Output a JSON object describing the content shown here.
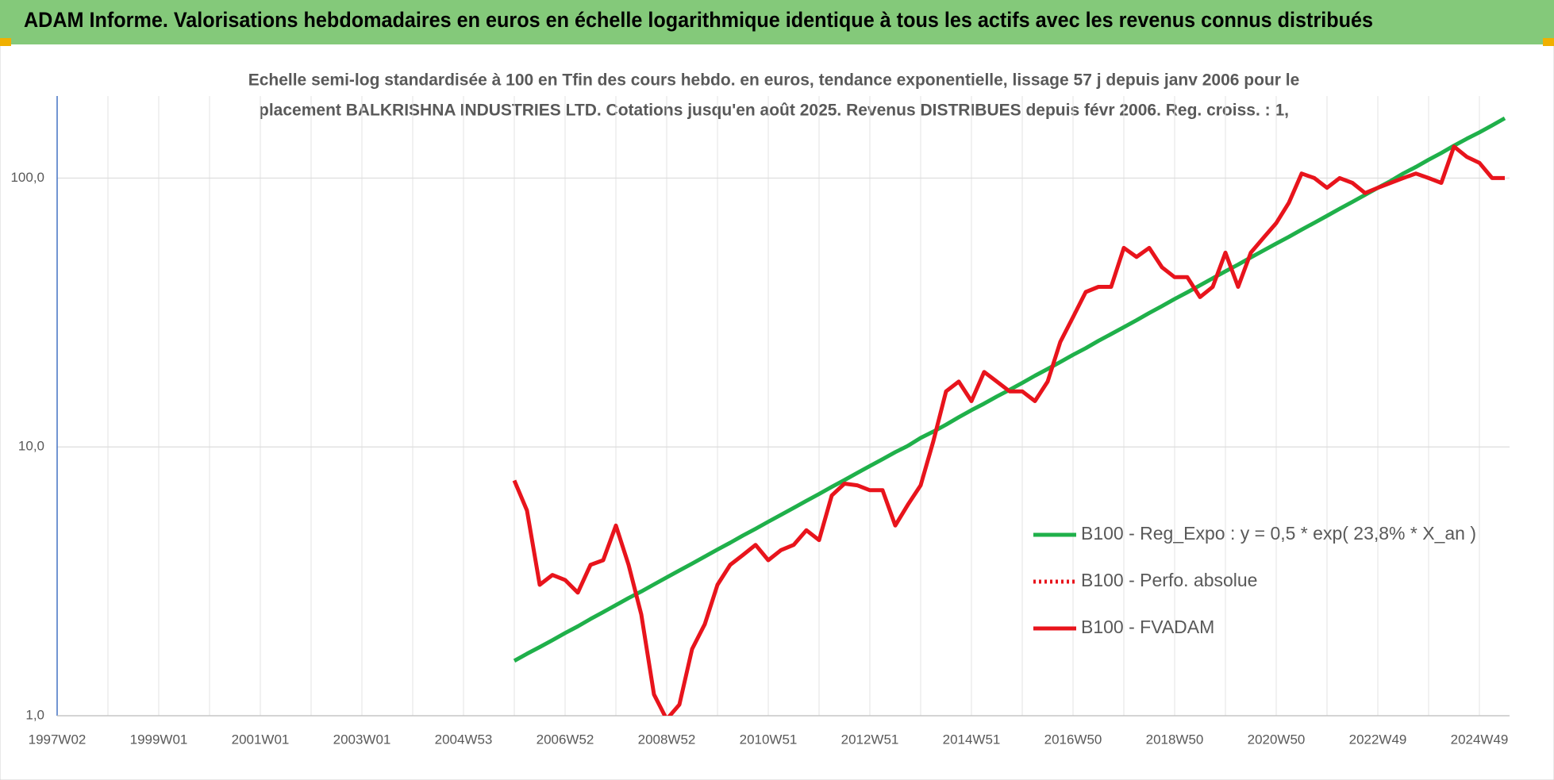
{
  "header": {
    "title": "ADAM Informe. Valorisations hebdomadaires en euros en échelle logarithmique identique à tous les actifs avec les revenus connus distribués"
  },
  "chart_data": {
    "type": "line",
    "subtitle": [
      "Echelle semi-log standardisée à 100 en Tfin des cours hebdo. en euros, tendance exponentielle, lissage 57 j depuis janv 2006 pour le",
      "placement BALKRISHNA  INDUSTRIES LTD. Cotations jusqu'en août 2025.  Revenus DISTRIBUES depuis févr 2006.  Reg. croiss. : 1,"
    ],
    "log_scale": true,
    "grid": true,
    "legend": "right",
    "ylim": [
      1,
      202
    ],
    "yticks": [
      {
        "value": 1,
        "label": "1,0"
      },
      {
        "value": 10,
        "label": "10,0"
      },
      {
        "value": 100,
        "label": "100,0"
      }
    ],
    "categories": [
      "1997W02",
      null,
      null,
      null,
      null,
      null,
      null,
      null,
      "1999W01",
      null,
      null,
      null,
      null,
      null,
      null,
      null,
      "2001W01",
      null,
      null,
      null,
      null,
      null,
      null,
      null,
      "2003W01",
      null,
      null,
      null,
      null,
      null,
      null,
      null,
      "2004W53",
      null,
      null,
      null,
      null,
      null,
      null,
      null,
      "2006W52",
      null,
      null,
      null,
      null,
      null,
      null,
      null,
      "2008W52",
      null,
      null,
      null,
      null,
      null,
      null,
      null,
      "2010W51",
      null,
      null,
      null,
      null,
      null,
      null,
      null,
      "2012W51",
      null,
      null,
      null,
      null,
      null,
      null,
      null,
      "2014W51",
      null,
      null,
      null,
      null,
      null,
      null,
      null,
      "2016W50",
      null,
      null,
      null,
      null,
      null,
      null,
      null,
      "2018W50",
      null,
      null,
      null,
      null,
      null,
      null,
      null,
      "2020W50",
      null,
      null,
      null,
      null,
      null,
      null,
      null,
      "2022W49",
      null,
      null,
      null,
      null,
      null,
      null,
      null,
      "2024W49",
      null,
      null
    ],
    "series": [
      {
        "name": "B100 - Reg_Expo : y = 0,5 * exp( 23,8% *  X_an )",
        "color": "#1fb04a",
        "dash": "solid",
        "values": [
          null,
          null,
          null,
          null,
          null,
          null,
          null,
          null,
          null,
          null,
          null,
          null,
          null,
          null,
          null,
          null,
          null,
          null,
          null,
          null,
          null,
          null,
          null,
          null,
          null,
          null,
          null,
          null,
          null,
          null,
          null,
          null,
          null,
          null,
          null,
          null,
          1.6,
          1.7,
          1.8,
          1.91,
          2.03,
          2.15,
          2.29,
          2.43,
          2.58,
          2.74,
          2.9,
          3.08,
          3.27,
          3.47,
          3.68,
          3.91,
          4.15,
          4.4,
          4.68,
          4.96,
          5.27,
          5.59,
          5.93,
          6.3,
          6.68,
          7.1,
          7.53,
          8.0,
          8.49,
          9.0,
          9.56,
          10.1,
          10.8,
          11.4,
          12.1,
          12.9,
          13.7,
          14.5,
          15.4,
          16.3,
          17.3,
          18.4,
          19.5,
          20.7,
          22.0,
          23.3,
          24.8,
          26.3,
          27.9,
          29.6,
          31.5,
          33.4,
          35.5,
          37.6,
          39.9,
          42.4,
          45.0,
          47.7,
          50.7,
          53.8,
          57.1,
          60.5,
          64.3,
          68.2,
          72.4,
          76.9,
          81.6,
          86.6,
          92.0,
          97.5,
          104,
          110,
          117,
          124,
          132,
          140,
          148,
          157,
          167
        ]
      },
      {
        "name": "B100 - Perfo. absolue",
        "color": "#e8141c",
        "dash": "dotted",
        "values": [
          null,
          null,
          null,
          null,
          null,
          null,
          null,
          null,
          null,
          null,
          null,
          null,
          null,
          null,
          null,
          null,
          null,
          null,
          null,
          null,
          null,
          null,
          null,
          null,
          null,
          null,
          null,
          null,
          null,
          null,
          null,
          null,
          null,
          null,
          null,
          null,
          null,
          null,
          null,
          null,
          null,
          null,
          null,
          null,
          null,
          null,
          null,
          null,
          null,
          null,
          null,
          null,
          null,
          null,
          null,
          null,
          null,
          null,
          null,
          null,
          null,
          null,
          null,
          null,
          null,
          null,
          null,
          null,
          null,
          null,
          null,
          null,
          null,
          null,
          null,
          null,
          null,
          null,
          null,
          null,
          null,
          null,
          null,
          null,
          null,
          null,
          null,
          null,
          null,
          null,
          null,
          null,
          null,
          null,
          null,
          null,
          null,
          null,
          null,
          null,
          null,
          null,
          null,
          null,
          null,
          null,
          null,
          null,
          null,
          null,
          null,
          null,
          null,
          null,
          null
        ]
      },
      {
        "name": "B100 - FVADAM",
        "color": "#e8141c",
        "dash": "solid",
        "values": [
          null,
          null,
          null,
          null,
          null,
          null,
          null,
          null,
          null,
          null,
          null,
          null,
          null,
          null,
          null,
          null,
          null,
          null,
          null,
          null,
          null,
          null,
          null,
          null,
          null,
          null,
          null,
          null,
          null,
          null,
          null,
          null,
          null,
          null,
          null,
          null,
          7.5,
          5.8,
          3.07,
          3.34,
          3.2,
          2.87,
          3.64,
          3.79,
          5.1,
          3.64,
          2.38,
          1.2,
          0.97,
          1.1,
          1.77,
          2.19,
          3.07,
          3.64,
          3.96,
          4.32,
          3.79,
          4.13,
          4.32,
          4.9,
          4.5,
          6.6,
          7.3,
          7.2,
          6.9,
          6.9,
          5.1,
          6.1,
          7.2,
          10.5,
          16.1,
          17.5,
          14.8,
          19.0,
          17.5,
          16.1,
          16.1,
          14.8,
          17.5,
          24.6,
          30.4,
          37.7,
          39.4,
          39.4,
          55,
          50.9,
          55,
          46.6,
          42.8,
          42.8,
          36.1,
          39.4,
          52.8,
          39.4,
          52.8,
          60,
          68,
          81,
          104,
          100,
          92,
          100,
          96,
          88,
          92,
          96,
          100,
          104,
          100,
          96,
          131,
          120,
          114,
          100,
          100
        ]
      }
    ]
  }
}
